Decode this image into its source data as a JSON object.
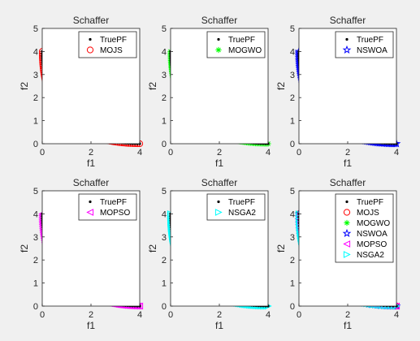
{
  "figure": {
    "background": "#f0f0f0"
  },
  "chart_data": [
    {
      "type": "scatter",
      "title": "Schaffer",
      "xlabel": "f1",
      "ylabel": "f2",
      "xlim": [
        0,
        4
      ],
      "ylim": [
        0,
        5
      ],
      "xticks": [
        0,
        2,
        4
      ],
      "yticks": [
        0,
        1,
        2,
        3,
        4,
        5
      ],
      "grid": true,
      "legend": {
        "placement": "top-right"
      },
      "series": [
        {
          "name": "TruePF",
          "marker": "dot",
          "color": "#000000",
          "curve": "pf",
          "count": 80
        },
        {
          "name": "MOJS",
          "marker": "circle",
          "color": "#ff0000",
          "curve": "pf",
          "count": 85
        }
      ]
    },
    {
      "type": "scatter",
      "title": "Schaffer",
      "xlabel": "f1",
      "ylabel": "f2",
      "xlim": [
        0,
        4
      ],
      "ylim": [
        0,
        5
      ],
      "xticks": [
        0,
        2,
        4
      ],
      "yticks": [
        0,
        1,
        2,
        3,
        4,
        5
      ],
      "grid": true,
      "legend": {
        "placement": "top-right"
      },
      "series": [
        {
          "name": "TruePF",
          "marker": "dot",
          "color": "#000000",
          "curve": "pf",
          "count": 80
        },
        {
          "name": "MOGWO",
          "marker": "asterisk",
          "color": "#00ff00",
          "curve": "pf",
          "count": 120
        }
      ]
    },
    {
      "type": "scatter",
      "title": "Schaffer",
      "xlabel": "f1",
      "ylabel": "f2",
      "xlim": [
        0,
        4
      ],
      "ylim": [
        0,
        5
      ],
      "xticks": [
        0,
        2,
        4
      ],
      "yticks": [
        0,
        1,
        2,
        3,
        4,
        5
      ],
      "grid": true,
      "legend": {
        "placement": "top-right"
      },
      "series": [
        {
          "name": "TruePF",
          "marker": "dot",
          "color": "#000000",
          "curve": "pf",
          "count": 80
        },
        {
          "name": "NSWOA",
          "marker": "star",
          "color": "#0000ff",
          "curve": "pf",
          "count": 120
        }
      ]
    },
    {
      "type": "scatter",
      "title": "Schaffer",
      "xlabel": "f1",
      "ylabel": "f2",
      "xlim": [
        0,
        4
      ],
      "ylim": [
        0,
        5
      ],
      "xticks": [
        0,
        2,
        4
      ],
      "yticks": [
        0,
        1,
        2,
        3,
        4,
        5
      ],
      "grid": true,
      "legend": {
        "placement": "top-right"
      },
      "series": [
        {
          "name": "TruePF",
          "marker": "dot",
          "color": "#000000",
          "curve": "pf",
          "count": 80
        },
        {
          "name": "MOPSO",
          "marker": "triangle-left",
          "color": "#ff00ff",
          "curve": "pf",
          "count": 120
        }
      ]
    },
    {
      "type": "scatter",
      "title": "Schaffer",
      "xlabel": "f1",
      "ylabel": "f2",
      "xlim": [
        0,
        4
      ],
      "ylim": [
        0,
        5
      ],
      "xticks": [
        0,
        2,
        4
      ],
      "yticks": [
        0,
        1,
        2,
        3,
        4,
        5
      ],
      "grid": true,
      "legend": {
        "placement": "top-right"
      },
      "series": [
        {
          "name": "TruePF",
          "marker": "dot",
          "color": "#000000",
          "curve": "pf",
          "count": 80
        },
        {
          "name": "NSGA2",
          "marker": "triangle-right",
          "color": "#00ffff",
          "curve": "pf",
          "count": 120
        }
      ]
    },
    {
      "type": "scatter",
      "title": "Schaffer",
      "xlabel": "f1",
      "ylabel": "f2",
      "xlim": [
        0,
        4
      ],
      "ylim": [
        0,
        5
      ],
      "xticks": [
        0,
        2,
        4
      ],
      "yticks": [
        0,
        1,
        2,
        3,
        4,
        5
      ],
      "grid": true,
      "legend": {
        "placement": "top-right"
      },
      "series": [
        {
          "name": "TruePF",
          "marker": "dot",
          "color": "#000000",
          "curve": "pf",
          "count": 60
        },
        {
          "name": "MOJS",
          "marker": "circle",
          "color": "#ff0000",
          "curve": "pf",
          "count": 40
        },
        {
          "name": "MOGWO",
          "marker": "asterisk",
          "color": "#00ff00",
          "curve": "pf",
          "count": 60
        },
        {
          "name": "NSWOA",
          "marker": "star",
          "color": "#0000ff",
          "curve": "pf",
          "count": 60
        },
        {
          "name": "MOPSO",
          "marker": "triangle-left",
          "color": "#ff00ff",
          "curve": "pf",
          "count": 80
        },
        {
          "name": "NSGA2",
          "marker": "triangle-right",
          "color": "#00ffff",
          "curve": "pf",
          "count": 80
        }
      ]
    }
  ]
}
